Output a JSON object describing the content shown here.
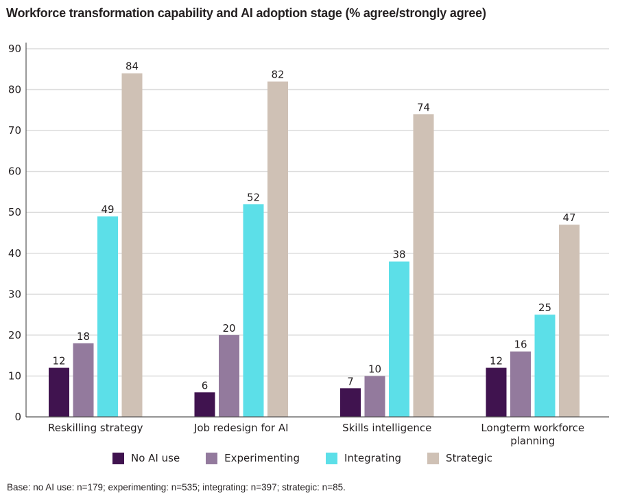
{
  "chart_data": {
    "type": "bar",
    "title": "Workforce transformation capability and AI adoption stage (% agree/strongly agree)",
    "xlabel": "",
    "ylabel": "",
    "ylim": [
      0,
      90
    ],
    "yticks": [
      0,
      10,
      20,
      30,
      40,
      50,
      60,
      70,
      80,
      90
    ],
    "grid": true,
    "legend_position": "bottom",
    "categories": [
      [
        "Reskilling strategy"
      ],
      [
        "Job redesign for AI"
      ],
      [
        "Skills intelligence"
      ],
      [
        "Longterm workforce",
        "planning"
      ]
    ],
    "series": [
      {
        "name": "No AI use",
        "color": "#40134f",
        "values": [
          12,
          6,
          7,
          12
        ]
      },
      {
        "name": "Experimenting",
        "color": "#937a9d",
        "values": [
          18,
          20,
          10,
          16
        ]
      },
      {
        "name": "Integrating",
        "color": "#5cdfe8",
        "values": [
          49,
          52,
          38,
          25
        ]
      },
      {
        "name": "Strategic",
        "color": "#cfc1b5",
        "values": [
          84,
          82,
          74,
          47
        ]
      }
    ],
    "footnote": "Base: no AI use: n=179; experimenting: n=535; integrating: n=397; strategic: n=85."
  }
}
